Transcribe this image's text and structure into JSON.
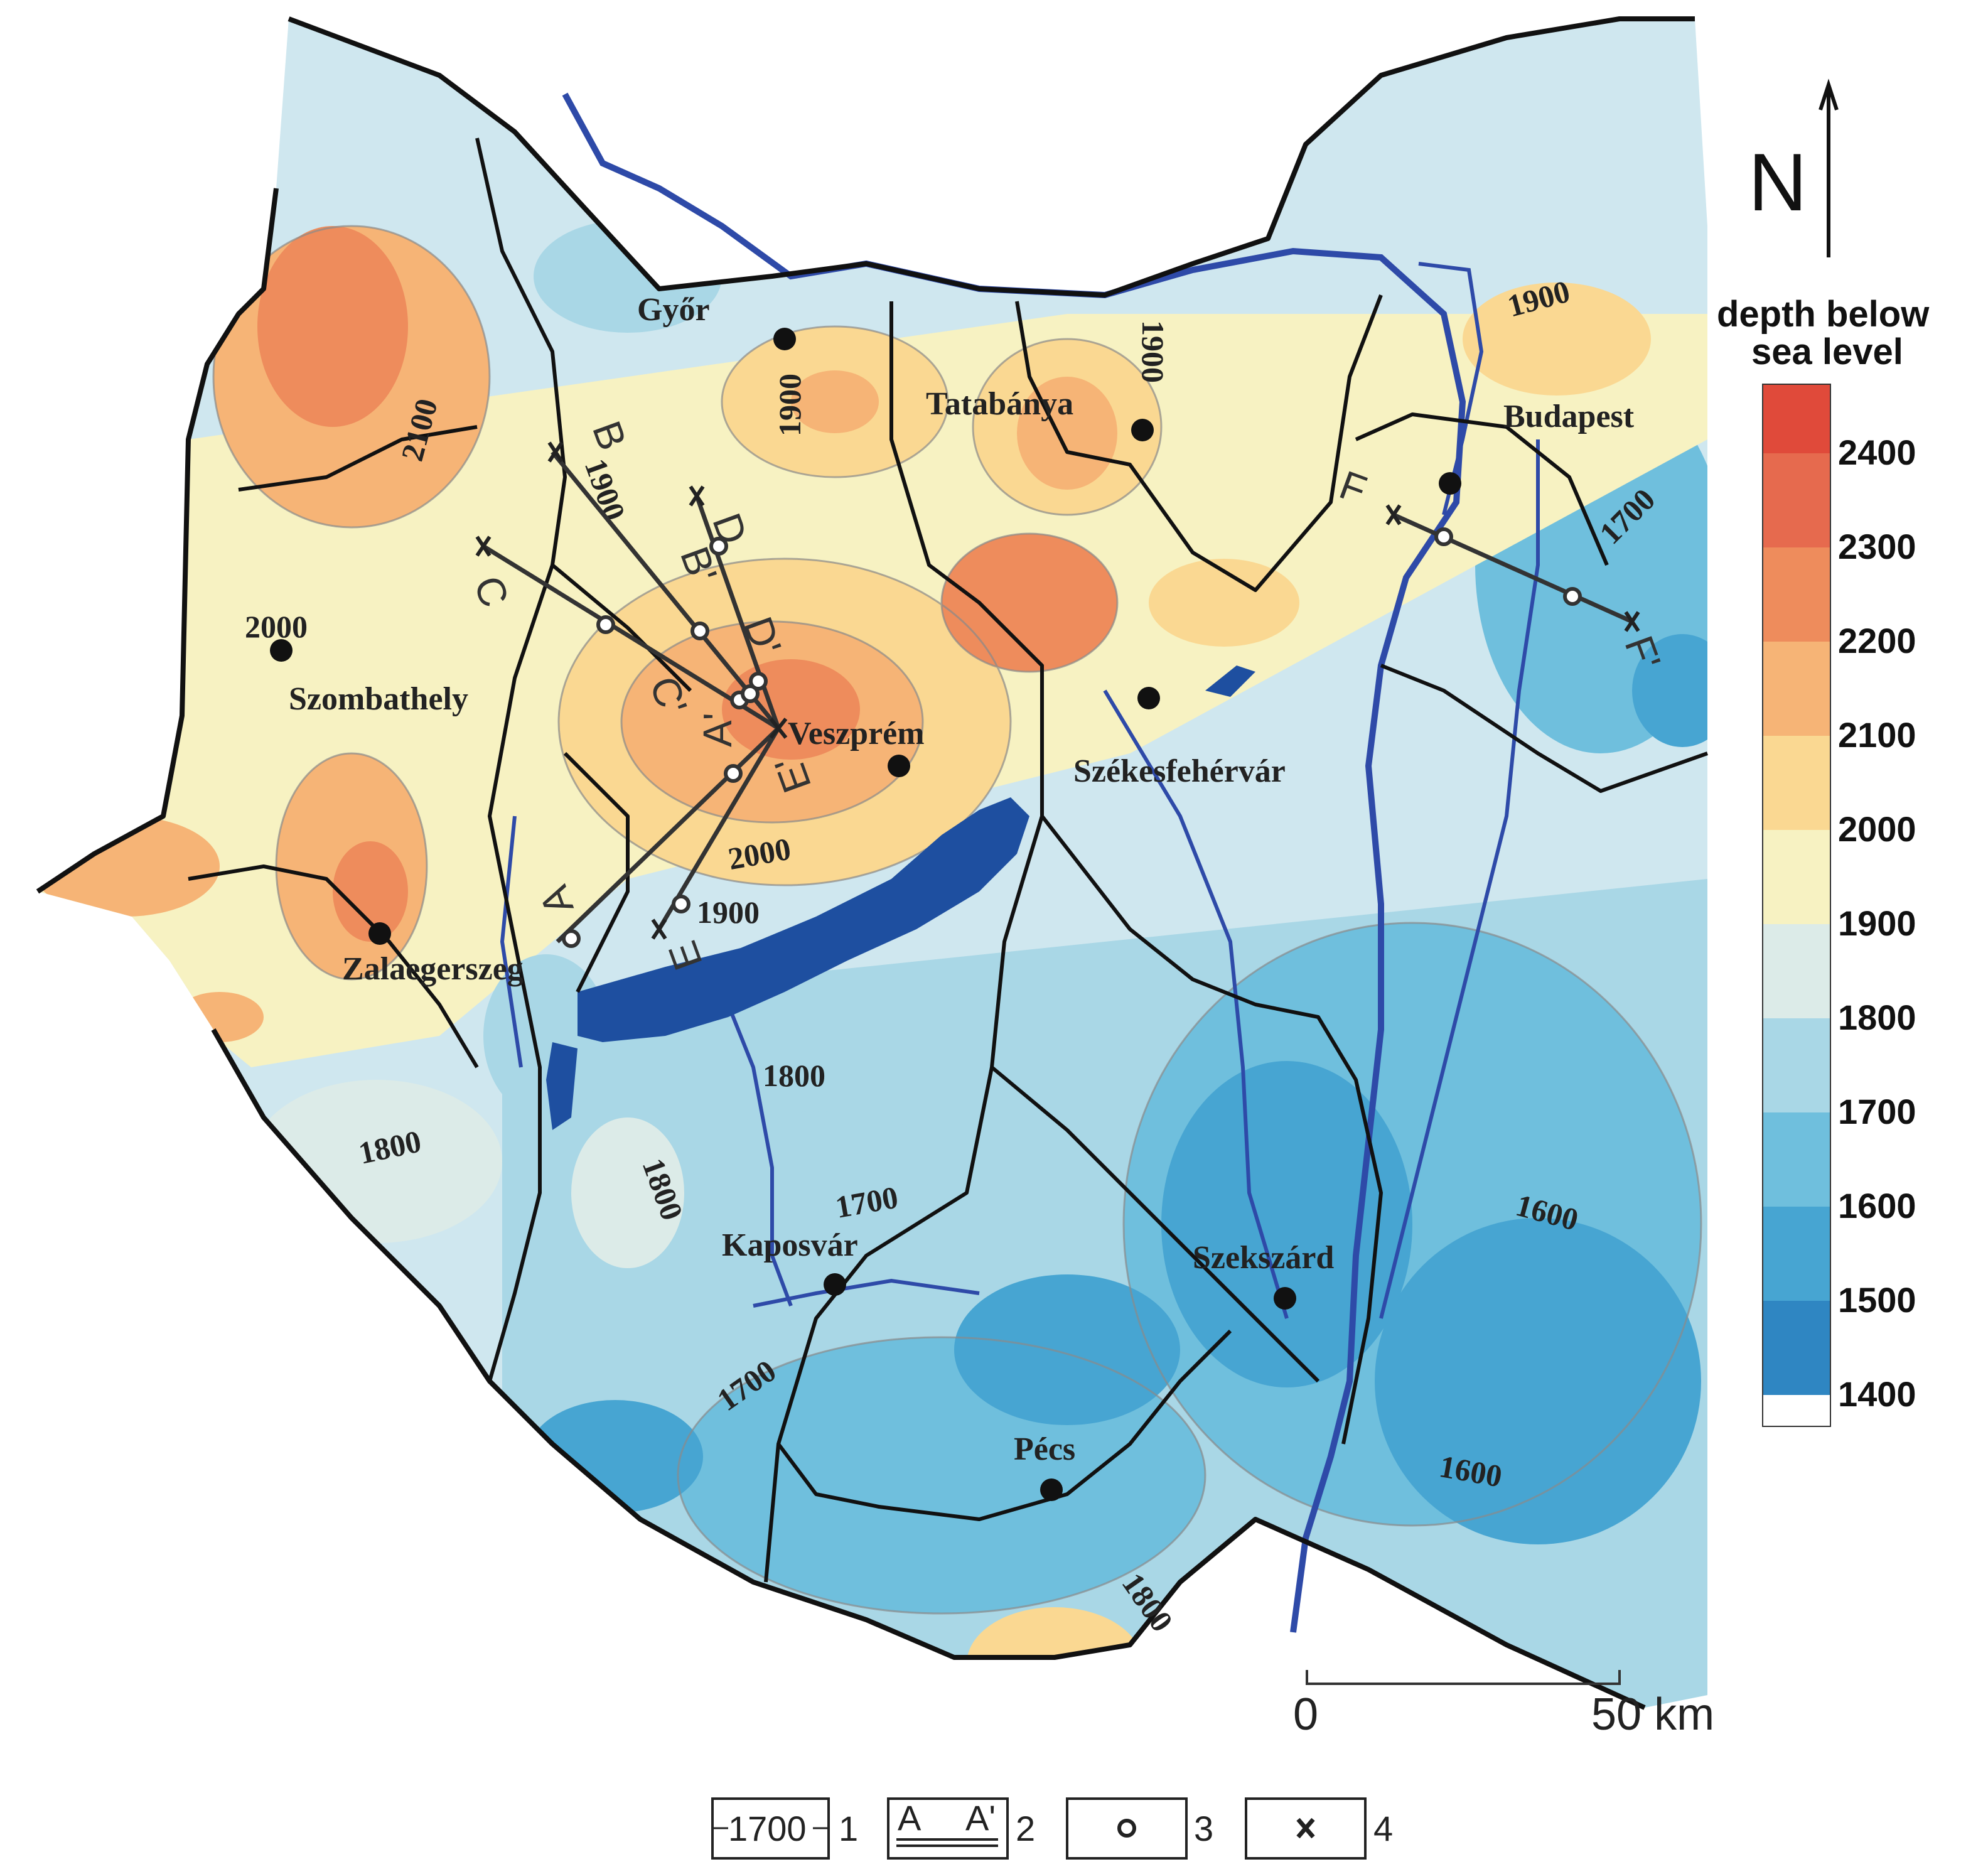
{
  "legend": {
    "title_line1": "depth below",
    "title_line2": "sea level",
    "classes": [
      {
        "value": "2400",
        "color": "#e04a3a"
      },
      {
        "value": "2300",
        "color": "#e66a4e"
      },
      {
        "value": "2200",
        "color": "#ee8c5c"
      },
      {
        "value": "2100",
        "color": "#f6b476"
      },
      {
        "value": "2000",
        "color": "#fad892"
      },
      {
        "value": "1900",
        "color": "#f7f2c2"
      },
      {
        "value": "1800",
        "color": "#dcebe8"
      },
      {
        "value": "1700",
        "color": "#a9d7e6"
      },
      {
        "value": "1600",
        "color": "#6fbfdd"
      },
      {
        "value": "1500",
        "color": "#47a5d2"
      },
      {
        "value": "1400",
        "color": "#2f86c2"
      }
    ]
  },
  "north_label": "N",
  "scale": {
    "zero": "0",
    "end": "50 km"
  },
  "cities": [
    {
      "name": "Győr"
    },
    {
      "name": "Tatabánya"
    },
    {
      "name": "Budapest"
    },
    {
      "name": "Szombathely"
    },
    {
      "name": "Veszprém"
    },
    {
      "name": "Székesfehérvár"
    },
    {
      "name": "Zalaegerszeg"
    },
    {
      "name": "Kaposvár"
    },
    {
      "name": "Szekszárd"
    },
    {
      "name": "Pécs"
    }
  ],
  "contour_labels": [
    "2100",
    "2000",
    "1900",
    "1900",
    "1900",
    "1900",
    "2000",
    "1900",
    "1800",
    "1800",
    "1800",
    "1700",
    "1700",
    "1600",
    "1600",
    "1800",
    "1700"
  ],
  "profiles": [
    {
      "start": "A",
      "end": "A'"
    },
    {
      "start": "B",
      "end": "B'"
    },
    {
      "start": "C",
      "end": "C'"
    },
    {
      "start": "D",
      "end": "D'"
    },
    {
      "start": "E",
      "end": "E'"
    },
    {
      "start": "F",
      "end": "F'"
    }
  ],
  "key": [
    {
      "symbol": "1700",
      "number": "1"
    },
    {
      "symbol_start": "A",
      "symbol_end": "A'",
      "number": "2"
    },
    {
      "symbol": "circle",
      "number": "3"
    },
    {
      "symbol": "cross",
      "number": "4"
    }
  ]
}
